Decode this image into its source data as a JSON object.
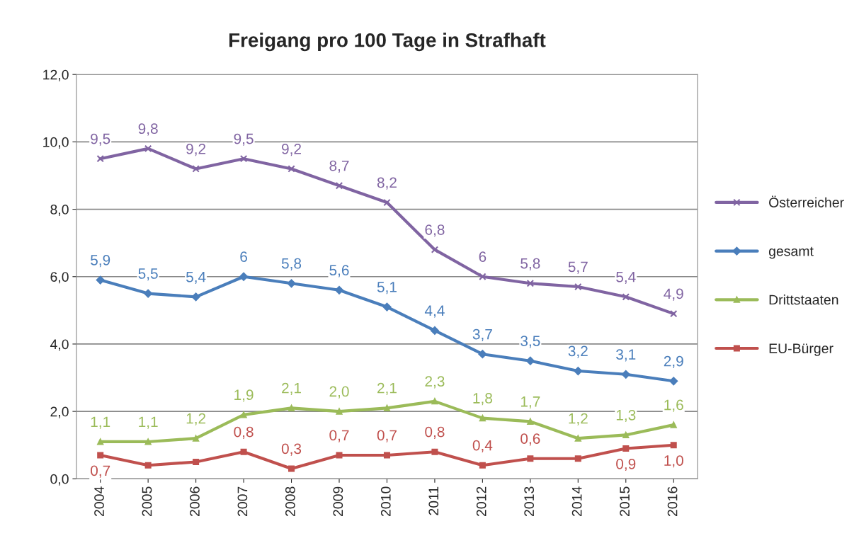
{
  "chart_data": {
    "type": "line",
    "title": "Freigang pro 100 Tage in Strafhaft",
    "categories": [
      "2004",
      "2005",
      "2006",
      "2007",
      "2008",
      "2009",
      "2010",
      "2011",
      "2012",
      "2013",
      "2014",
      "2015",
      "2016"
    ],
    "series": [
      {
        "name": "Österreicher",
        "color": "#8064a2",
        "marker": "cross",
        "values": [
          9.5,
          9.8,
          9.2,
          9.5,
          9.2,
          8.7,
          8.2,
          6.8,
          6,
          5.8,
          5.7,
          5.4,
          4.9
        ],
        "value_labels": [
          "9,5",
          "9,8",
          "9,2",
          "9,5",
          "9,2",
          "8,7",
          "8,2",
          "6,8",
          "6",
          "5,8",
          "5,7",
          "5,4",
          "4,9"
        ]
      },
      {
        "name": "gesamt",
        "color": "#4a7ebb",
        "marker": "diamond",
        "values": [
          5.9,
          5.5,
          5.4,
          6,
          5.8,
          5.6,
          5.1,
          4.4,
          3.7,
          3.5,
          3.2,
          3.1,
          2.9
        ],
        "value_labels": [
          "5,9",
          "5,5",
          "5,4",
          "6",
          "5,8",
          "5,6",
          "5,1",
          "4,4",
          "3,7",
          "3,5",
          "3,2",
          "3,1",
          "2,9"
        ]
      },
      {
        "name": "Drittstaaten",
        "color": "#9bbb59",
        "marker": "triangle",
        "values": [
          1.1,
          1.1,
          1.2,
          1.9,
          2.1,
          2.0,
          2.1,
          2.3,
          1.8,
          1.7,
          1.2,
          1.3,
          1.6
        ],
        "value_labels": [
          "1,1",
          "1,1",
          "1,2",
          "1,9",
          "2,1",
          "2,0",
          "2,1",
          "2,3",
          "1,8",
          "1,7",
          "1,2",
          "1,3",
          "1,6"
        ]
      },
      {
        "name": "EU-Bürger",
        "color": "#c0504d",
        "marker": "square",
        "values": [
          0.7,
          0.4,
          0.5,
          0.8,
          0.3,
          0.7,
          0.7,
          0.8,
          0.4,
          0.6,
          0.6,
          0.9,
          1.0
        ],
        "value_labels": [
          "0,7",
          null,
          null,
          "0,8",
          "0,3",
          "0,7",
          "0,7",
          "0,8",
          "0,4",
          "0,6",
          null,
          "0,9",
          "1,0"
        ]
      }
    ],
    "ylim": [
      0,
      12
    ],
    "yticks": [
      {
        "value": 0,
        "label": "0,0"
      },
      {
        "value": 2,
        "label": "2,0"
      },
      {
        "value": 4,
        "label": "4,0"
      },
      {
        "value": 6,
        "label": "6,0"
      },
      {
        "value": 8,
        "label": "8,0"
      },
      {
        "value": 10,
        "label": "10,0"
      },
      {
        "value": 12,
        "label": "12,0"
      }
    ],
    "grid": "y",
    "legend": "right",
    "line_style": "solid"
  }
}
